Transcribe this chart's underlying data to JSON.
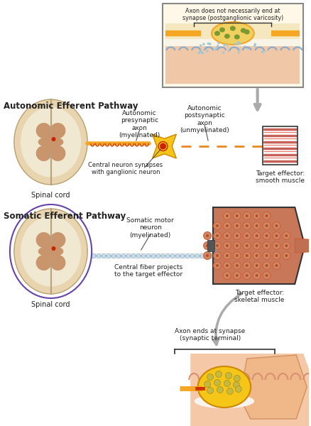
{
  "bg_color": "#ffffff",
  "autonomic_title": "Autonomic Efferent Pathway",
  "somatic_title": "Somatic Efferent Pathway",
  "spinal_cord_label": "Spinal cord",
  "labels": {
    "auto_pre": "Autonomic\npresynaptic\naxon\n(myelinated)",
    "auto_post": "Autonomic\npostsynaptic\naxon\n(unmyelinated)",
    "central_synapse": "Central neuron synapses\nwith ganglionic neuron",
    "target_smooth": "Target effector:\nsmooth muscle",
    "inset_title": "Axon does not necessarily end at\nsynapse (postganglionic varicosity)",
    "somatic_neuron": "Somatic motor\nneuron\n(myelinated)",
    "central_fiber": "Central fiber projects\nto the target effector",
    "target_skeletal": "Target effector:\nskeletal muscle",
    "axon_ends": "Axon ends at synapse\n(synaptic terminal)"
  },
  "colors": {
    "spinal_outer": "#e8d5b0",
    "spinal_inner": "#d4b483",
    "spinal_gray": "#c8956c",
    "spinal_white": "#f0e8d0",
    "neuron_body": "#f5c518",
    "axon_orange": "#f5a623",
    "axon_dashed": "#e88820",
    "myelinated_line": "#b8d4e8",
    "synapse_dot": "#cc3300",
    "ganglia_body": "#f5c518",
    "smooth_muscle": "#c8605a",
    "skeletal_muscle_outer": "#b05040",
    "skeletal_muscle_inner": "#d0785a",
    "inset_bg": "#fff8e8",
    "inset_border": "#888888",
    "arrow_gray": "#999999",
    "text_color": "#222222",
    "bracket_color": "#444444",
    "varicosity_fill": "#f0d060",
    "varicosity_dots": "#8a7a20",
    "receptor_fill": "#f5c518",
    "synaptic_vesicle": "#d4c060"
  }
}
